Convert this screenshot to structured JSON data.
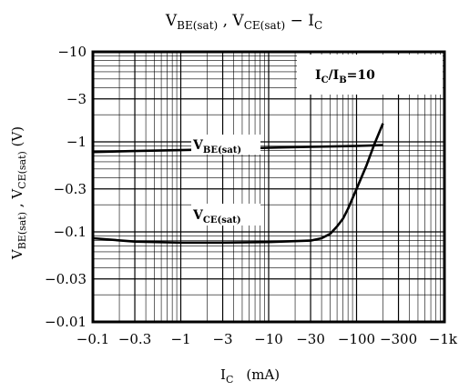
{
  "chart_data": {
    "type": "line",
    "title": {
      "main": "V",
      "sub1": "BE(sat)",
      "sep": " ,  V",
      "sub2": "CE(sat)",
      "dash": "  −  I",
      "sub3": "C"
    },
    "xlabel": {
      "main": "I",
      "sub": "C",
      "unit": "(mA)"
    },
    "ylabel": {
      "p1": "V",
      "s1": "BE(sat)",
      "sep": " ,  V",
      "s2": "CE(sat)",
      "unit": " (V)"
    },
    "x_scale": "log",
    "y_scale": "log",
    "xlim": [
      -0.1,
      -1000
    ],
    "ylim": [
      -0.01,
      -10
    ],
    "grid": true,
    "x_ticks": [
      {
        "value": -0.1,
        "label": "−0.1"
      },
      {
        "value": -0.3,
        "label": "−0.3"
      },
      {
        "value": -1,
        "label": "−1"
      },
      {
        "value": -3,
        "label": "−3"
      },
      {
        "value": -10,
        "label": "−10"
      },
      {
        "value": -30,
        "label": "−30"
      },
      {
        "value": -100,
        "label": "−100"
      },
      {
        "value": -300,
        "label": "−300"
      },
      {
        "value": -1000,
        "label": "−1k"
      }
    ],
    "y_ticks": [
      {
        "value": -10,
        "label": "−10"
      },
      {
        "value": -3,
        "label": "−3"
      },
      {
        "value": -1,
        "label": "−1"
      },
      {
        "value": -0.3,
        "label": "−0.3"
      },
      {
        "value": -0.1,
        "label": "−0.1"
      },
      {
        "value": -0.03,
        "label": "−0.03"
      },
      {
        "value": -0.01,
        "label": "−0.01"
      }
    ],
    "annotation": {
      "main": "I",
      "sub1": "C",
      "mid": "/I",
      "sub2": "B",
      "tail": "=10"
    },
    "series": [
      {
        "name": {
          "main": "V",
          "sub": "BE(sat)"
        },
        "x": [
          -0.1,
          -0.3,
          -1,
          -3,
          -10,
          -30,
          -100,
          -200
        ],
        "y": [
          -0.77,
          -0.79,
          -0.81,
          -0.83,
          -0.86,
          -0.88,
          -0.9,
          -0.92
        ]
      },
      {
        "name": {
          "main": "V",
          "sub": "CE(sat)"
        },
        "x": [
          -0.1,
          -0.3,
          -1,
          -3,
          -10,
          -30,
          -40,
          -50,
          -60,
          -70,
          -80,
          -100,
          -130,
          -160,
          -200
        ],
        "y": [
          -0.085,
          -0.078,
          -0.076,
          -0.076,
          -0.077,
          -0.08,
          -0.085,
          -0.095,
          -0.115,
          -0.14,
          -0.18,
          -0.3,
          -0.55,
          -0.95,
          -1.6
        ]
      }
    ]
  }
}
